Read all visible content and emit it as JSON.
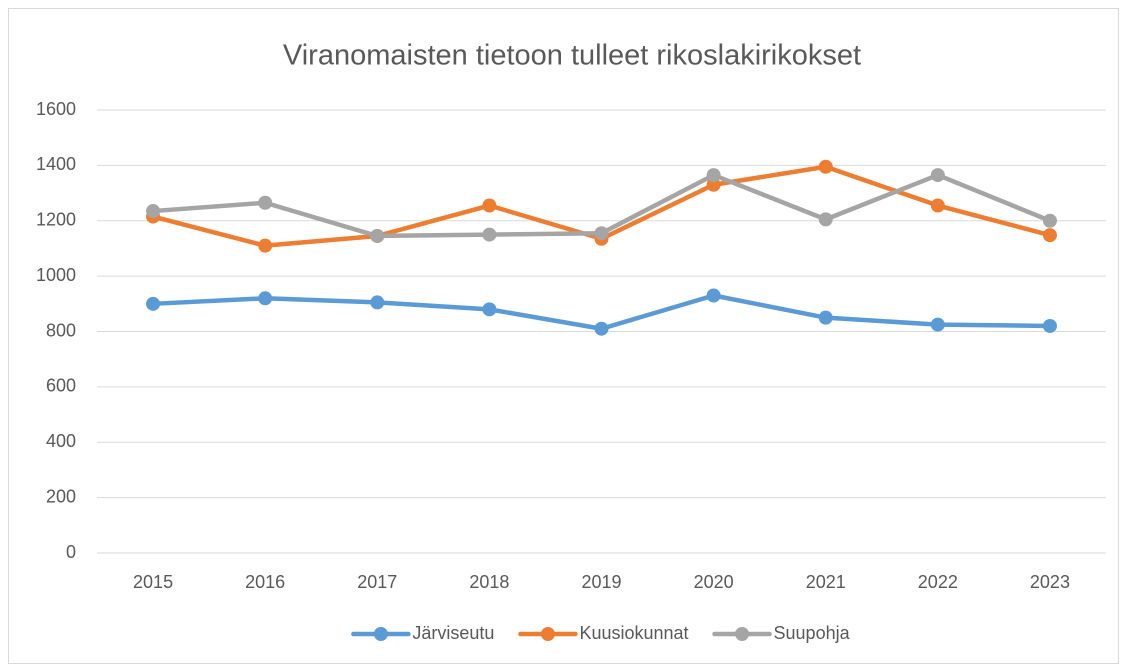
{
  "chart_data": {
    "type": "line",
    "title": "Viranomaisten tietoon tulleet rikoslakirikokset",
    "categories": [
      "2015",
      "2016",
      "2017",
      "2018",
      "2019",
      "2020",
      "2021",
      "2022",
      "2023"
    ],
    "series": [
      {
        "name": "Järviseutu",
        "color": "#5b9bd5",
        "values": [
          900,
          920,
          905,
          880,
          810,
          930,
          850,
          825,
          820
        ]
      },
      {
        "name": "Kuusiokunnat",
        "color": "#ed7d31",
        "values": [
          1215,
          1110,
          1145,
          1255,
          1135,
          1330,
          1395,
          1255,
          1148
        ]
      },
      {
        "name": "Suupohja",
        "color": "#a5a5a5",
        "values": [
          1235,
          1265,
          1145,
          1150,
          1155,
          1365,
          1205,
          1365,
          1200
        ]
      }
    ],
    "ylim": [
      0,
      1600
    ],
    "yticks": [
      0,
      200,
      400,
      600,
      800,
      1000,
      1200,
      1400,
      1600
    ],
    "grid": true,
    "legend": "bottom"
  }
}
